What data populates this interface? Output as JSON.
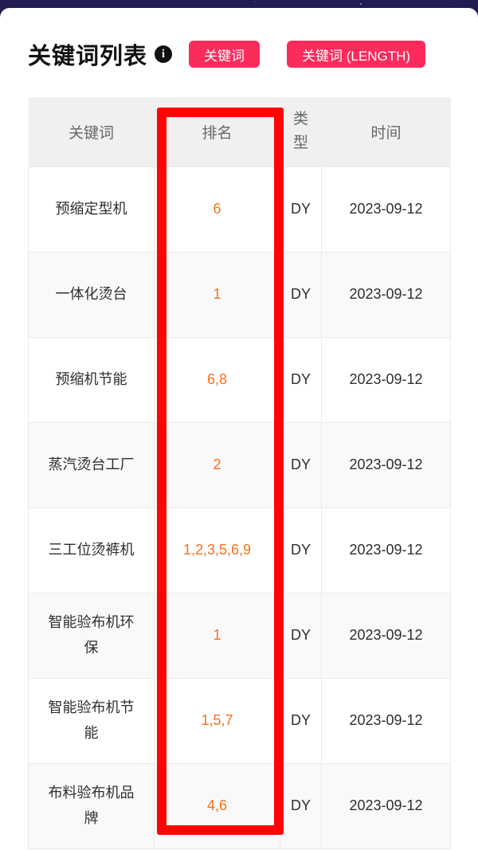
{
  "header": {
    "title": "关键词列表",
    "info_icon": "i",
    "buttons": [
      {
        "label": "关键词"
      },
      {
        "label": "关键词 (LENGTH)"
      }
    ]
  },
  "table": {
    "columns": [
      {
        "key": "keyword",
        "label": "关键词"
      },
      {
        "key": "rank",
        "label": "排名"
      },
      {
        "key": "type",
        "label": "类型"
      },
      {
        "key": "date",
        "label": "时间"
      }
    ],
    "rows": [
      {
        "keyword": "预缩定型机",
        "rank": "6",
        "type": "DY",
        "date": "2023-09-12"
      },
      {
        "keyword": "一体化烫台",
        "rank": "1",
        "type": "DY",
        "date": "2023-09-12"
      },
      {
        "keyword": "预缩机节能",
        "rank": "6,8",
        "type": "DY",
        "date": "2023-09-12"
      },
      {
        "keyword": "蒸汽烫台工厂",
        "rank": "2",
        "type": "DY",
        "date": "2023-09-12"
      },
      {
        "keyword": "三工位烫裤机",
        "rank": "1,2,3,5,6,9",
        "type": "DY",
        "date": "2023-09-12"
      },
      {
        "keyword": "智能验布机环保",
        "rank": "1",
        "type": "DY",
        "date": "2023-09-12"
      },
      {
        "keyword": "智能验布机节能",
        "rank": "1,5,7",
        "type": "DY",
        "date": "2023-09-12"
      },
      {
        "keyword": "布料验布机品牌",
        "rank": "4,6",
        "type": "DY",
        "date": "2023-09-12"
      }
    ]
  },
  "highlight": {
    "highlighted_column": "排名",
    "border_color": "#fe0505"
  },
  "colors": {
    "topbar_navy": "#201d52",
    "button_pink": "#fb2c5c",
    "rank_orange": "#f8701d",
    "header_gray_bg": "#f0f0f0",
    "zebra_row_bg": "#f9f9f9",
    "header_text": "#666666",
    "body_text": "#2e2e2e"
  }
}
